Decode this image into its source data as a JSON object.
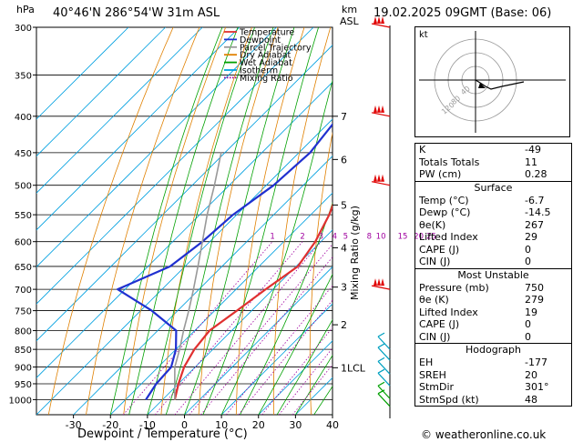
{
  "header": {
    "units_hpa": "hPa",
    "location": "40°46'N  286°54'W  31m  ASL",
    "units_km": "km",
    "units_asl": "ASL",
    "datetime": "19.02.2025  09GMT  (Base: 06)"
  },
  "footer": {
    "copyright": "© weatheronline.co.uk"
  },
  "chart_data": {
    "type": "line",
    "title": "",
    "xlabel": "Dewpoint / Temperature (°C)",
    "ylabel": "hPa",
    "right_ylabel": "Mixing Ratio (g/kg)",
    "xlim": [
      -40,
      40
    ],
    "ylim": [
      1050,
      300
    ],
    "x_ticks": [
      -30,
      -20,
      -10,
      0,
      10,
      20,
      30,
      40
    ],
    "pressure_levels": [
      300,
      350,
      400,
      450,
      500,
      550,
      600,
      650,
      700,
      750,
      800,
      850,
      900,
      950,
      1000
    ],
    "altitude_km": [
      {
        "km": "7",
        "p": 400
      },
      {
        "km": "6",
        "p": 460
      },
      {
        "km": "5",
        "p": 533
      },
      {
        "km": "4",
        "p": 612
      },
      {
        "km": "3",
        "p": 695
      },
      {
        "km": "2",
        "p": 785
      },
      {
        "km": "1LCL",
        "p": 902
      }
    ],
    "mixing_ratio_labels": [
      "1",
      "2",
      "3",
      "4",
      "5",
      "8",
      "10",
      "15",
      "20",
      "25"
    ],
    "legend": {
      "placement": "top-left",
      "entries": [
        {
          "name": "Temperature",
          "color": "#e03030",
          "style": "solid"
        },
        {
          "name": "Dewpoint",
          "color": "#2030d0",
          "style": "solid"
        },
        {
          "name": "Parcel Trajectory",
          "color": "#999999",
          "style": "solid"
        },
        {
          "name": "Dry Adiabat",
          "color": "#e08000",
          "style": "solid"
        },
        {
          "name": "Wet Adiabat",
          "color": "#00a000",
          "style": "solid"
        },
        {
          "name": "Isotherm",
          "color": "#00a0e0",
          "style": "solid"
        },
        {
          "name": "Mixing Ratio",
          "color": "#a000a0",
          "style": "dotted"
        }
      ]
    },
    "series": [
      {
        "name": "Temperature",
        "color": "#e03030",
        "points": [
          {
            "p": 1000,
            "t": -6.7
          },
          {
            "p": 950,
            "t": -10
          },
          {
            "p": 900,
            "t": -13
          },
          {
            "p": 850,
            "t": -15
          },
          {
            "p": 800,
            "t": -16
          },
          {
            "p": 750,
            "t": -14
          },
          {
            "p": 700,
            "t": -12
          },
          {
            "p": 650,
            "t": -9.5
          },
          {
            "p": 600,
            "t": -11.5
          },
          {
            "p": 550,
            "t": -15
          },
          {
            "p": 500,
            "t": -20
          },
          {
            "p": 450,
            "t": -25.5
          },
          {
            "p": 400,
            "t": -31
          },
          {
            "p": 350,
            "t": -38
          },
          {
            "p": 300,
            "t": -45
          }
        ]
      },
      {
        "name": "Dewpoint",
        "color": "#2030d0",
        "points": [
          {
            "p": 1000,
            "t": -14.5
          },
          {
            "p": 950,
            "t": -16
          },
          {
            "p": 900,
            "t": -16.5
          },
          {
            "p": 850,
            "t": -20
          },
          {
            "p": 800,
            "t": -25
          },
          {
            "p": 750,
            "t": -37
          },
          {
            "p": 700,
            "t": -52
          },
          {
            "p": 650,
            "t": -44
          },
          {
            "p": 600,
            "t": -42
          },
          {
            "p": 550,
            "t": -41
          },
          {
            "p": 500,
            "t": -38
          },
          {
            "p": 450,
            "t": -37
          },
          {
            "p": 400,
            "t": -39
          },
          {
            "p": 350,
            "t": -44
          },
          {
            "p": 300,
            "t": -49
          }
        ]
      },
      {
        "name": "Parcel Trajectory",
        "color": "#999999",
        "points": [
          {
            "p": 1000,
            "t": -6.7
          },
          {
            "p": 950,
            "t": -11
          },
          {
            "p": 900,
            "t": -15.5
          },
          {
            "p": 850,
            "t": -19
          },
          {
            "p": 800,
            "t": -23
          },
          {
            "p": 750,
            "t": -27
          },
          {
            "p": 700,
            "t": -31.5
          },
          {
            "p": 650,
            "t": -36.5
          },
          {
            "p": 600,
            "t": -42
          },
          {
            "p": 550,
            "t": -48
          },
          {
            "p": 500,
            "t": -54
          },
          {
            "p": 450,
            "t": -61
          }
        ]
      }
    ]
  },
  "hodograph": {
    "unit_label": "kt",
    "ring_labels": [
      "40",
      "80",
      "120"
    ]
  },
  "indices": {
    "top": [
      {
        "label": "K",
        "value": "-49"
      },
      {
        "label": "Totals Totals",
        "value": "11"
      },
      {
        "label": "PW (cm)",
        "value": "0.28"
      }
    ],
    "surface": {
      "title": "Surface",
      "rows": [
        {
          "label": "Temp (°C)",
          "value": "-6.7"
        },
        {
          "label": "Dewp (°C)",
          "value": "-14.5"
        },
        {
          "label": "θe(K)",
          "value": "267"
        },
        {
          "label": "Lifted Index",
          "value": "29"
        },
        {
          "label": "CAPE (J)",
          "value": "0"
        },
        {
          "label": "CIN (J)",
          "value": "0"
        }
      ]
    },
    "most_unstable": {
      "title": "Most Unstable",
      "rows": [
        {
          "label": "Pressure (mb)",
          "value": "750"
        },
        {
          "label": "θe (K)",
          "value": "279"
        },
        {
          "label": "Lifted Index",
          "value": "19"
        },
        {
          "label": "CAPE (J)",
          "value": "0"
        },
        {
          "label": "CIN (J)",
          "value": "0"
        }
      ]
    },
    "hodograph": {
      "title": "Hodograph",
      "rows": [
        {
          "label": "EH",
          "value": "-177"
        },
        {
          "label": "SREH",
          "value": "20"
        },
        {
          "label": "StmDir",
          "value": "301°"
        },
        {
          "label": "StmSpd (kt)",
          "value": "48"
        }
      ]
    }
  }
}
